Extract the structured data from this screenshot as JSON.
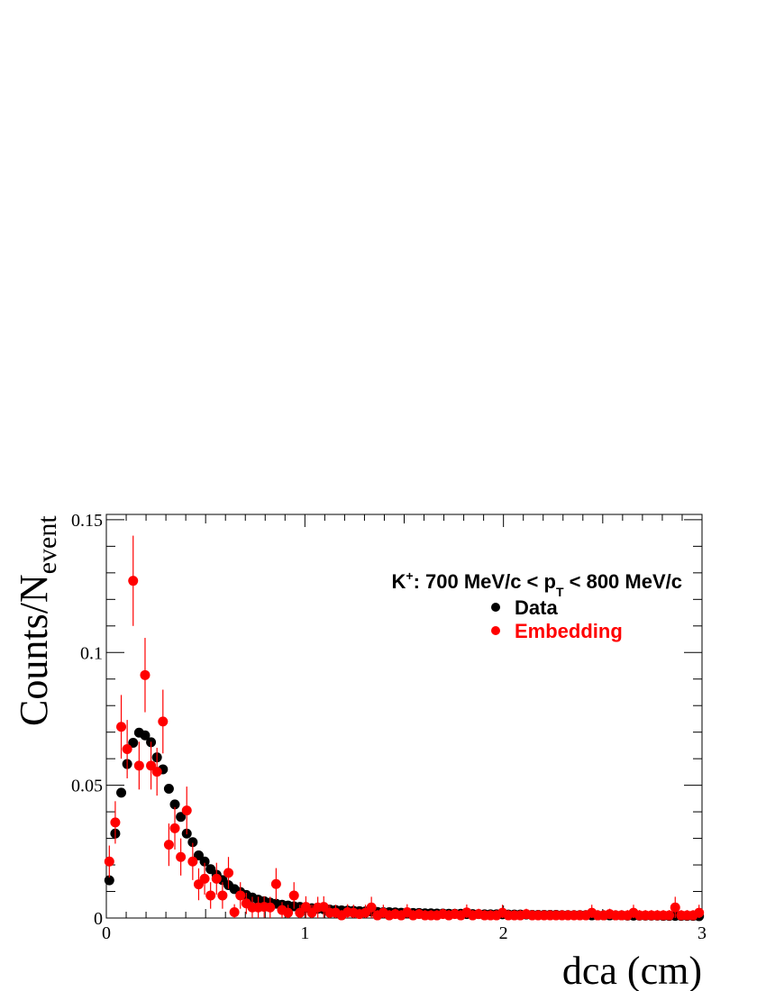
{
  "chart_data": {
    "type": "scatter",
    "title": "",
    "xlabel": "dca (cm)",
    "ylabel_main": "Counts/N",
    "ylabel_sub": "event",
    "xlim": [
      0,
      3
    ],
    "ylim": [
      0,
      0.152
    ],
    "xticks": [
      0,
      1,
      2,
      3
    ],
    "xtick_labels": [
      "0",
      "1",
      "2",
      "3"
    ],
    "yticks": [
      0,
      0.05,
      0.1,
      0.15
    ],
    "ytick_labels": [
      "0",
      "0.05",
      "0.1",
      "0.15"
    ],
    "grid": false,
    "legend_placement": "top-right",
    "annotation": {
      "particle": "K",
      "charge": "+",
      "text_a": ": 700 MeV/c < p",
      "subscript": "T",
      "text_b": " < 800 MeV/c"
    },
    "series": [
      {
        "name": "Data",
        "color": "#000000",
        "x": [
          0.015,
          0.045,
          0.075,
          0.105,
          0.135,
          0.165,
          0.195,
          0.225,
          0.255,
          0.285,
          0.315,
          0.345,
          0.375,
          0.405,
          0.435,
          0.465,
          0.495,
          0.525,
          0.555,
          0.585,
          0.615,
          0.645,
          0.675,
          0.705,
          0.735,
          0.765,
          0.795,
          0.825,
          0.855,
          0.885,
          0.915,
          0.945,
          0.975,
          1.005,
          1.035,
          1.065,
          1.095,
          1.125,
          1.155,
          1.185,
          1.215,
          1.245,
          1.275,
          1.305,
          1.335,
          1.365,
          1.395,
          1.425,
          1.455,
          1.485,
          1.515,
          1.545,
          1.575,
          1.605,
          1.635,
          1.665,
          1.695,
          1.725,
          1.755,
          1.785,
          1.815,
          1.845,
          1.875,
          1.905,
          1.935,
          1.965,
          1.995,
          2.025,
          2.055,
          2.085,
          2.115,
          2.145,
          2.175,
          2.205,
          2.235,
          2.265,
          2.295,
          2.325,
          2.355,
          2.385,
          2.415,
          2.445,
          2.475,
          2.505,
          2.535,
          2.565,
          2.595,
          2.625,
          2.655,
          2.685,
          2.715,
          2.745,
          2.775,
          2.805,
          2.835,
          2.865,
          2.895,
          2.925,
          2.955,
          2.985
        ],
        "y": [
          0.0142,
          0.0318,
          0.0472,
          0.058,
          0.066,
          0.0698,
          0.0688,
          0.0662,
          0.0605,
          0.056,
          0.0487,
          0.0428,
          0.0381,
          0.0318,
          0.0286,
          0.0236,
          0.0213,
          0.0184,
          0.0163,
          0.0143,
          0.0124,
          0.0109,
          0.0098,
          0.0087,
          0.0077,
          0.0069,
          0.0063,
          0.0058,
          0.0054,
          0.005,
          0.0047,
          0.0044,
          0.0042,
          0.0039,
          0.0037,
          0.0035,
          0.0033,
          0.0032,
          0.003,
          0.0029,
          0.0028,
          0.0027,
          0.0026,
          0.0025,
          0.0024,
          0.0023,
          0.0022,
          0.0022,
          0.0021,
          0.002,
          0.002,
          0.0019,
          0.0019,
          0.0018,
          0.0018,
          0.0017,
          0.0017,
          0.0016,
          0.0016,
          0.0016,
          0.0015,
          0.0015,
          0.0015,
          0.0014,
          0.0014,
          0.0014,
          0.0014,
          0.0013,
          0.0013,
          0.0013,
          0.0013,
          0.0012,
          0.0012,
          0.0012,
          0.0012,
          0.0012,
          0.0011,
          0.0011,
          0.0011,
          0.0011,
          0.0011,
          0.001,
          0.001,
          0.001,
          0.001,
          0.001,
          0.001,
          0.0009,
          0.0009,
          0.0009,
          0.0009,
          0.0009,
          0.0009,
          0.0008,
          0.0008,
          0.0008,
          0.0008,
          0.0008,
          0.0008,
          0.0007
        ],
        "err": []
      },
      {
        "name": "Embedding",
        "color": "#ff0000",
        "x": [
          0.015,
          0.045,
          0.075,
          0.105,
          0.135,
          0.165,
          0.195,
          0.225,
          0.255,
          0.285,
          0.315,
          0.345,
          0.375,
          0.405,
          0.435,
          0.465,
          0.495,
          0.525,
          0.555,
          0.585,
          0.615,
          0.645,
          0.675,
          0.705,
          0.735,
          0.765,
          0.795,
          0.825,
          0.855,
          0.885,
          0.915,
          0.945,
          0.975,
          1.005,
          1.035,
          1.065,
          1.095,
          1.125,
          1.155,
          1.185,
          1.215,
          1.245,
          1.275,
          1.305,
          1.335,
          1.365,
          1.395,
          1.425,
          1.455,
          1.485,
          1.515,
          1.545,
          1.575,
          1.605,
          1.635,
          1.665,
          1.695,
          1.725,
          1.755,
          1.785,
          1.815,
          1.845,
          1.875,
          1.905,
          1.935,
          1.965,
          1.995,
          2.025,
          2.055,
          2.085,
          2.115,
          2.145,
          2.175,
          2.205,
          2.235,
          2.265,
          2.295,
          2.325,
          2.355,
          2.385,
          2.415,
          2.445,
          2.475,
          2.505,
          2.535,
          2.565,
          2.595,
          2.625,
          2.655,
          2.685,
          2.715,
          2.745,
          2.775,
          2.805,
          2.835,
          2.865,
          2.895,
          2.925,
          2.955,
          2.985
        ],
        "y": [
          0.0213,
          0.036,
          0.072,
          0.0636,
          0.127,
          0.0574,
          0.0915,
          0.0574,
          0.0551,
          0.074,
          0.0276,
          0.0338,
          0.023,
          0.0405,
          0.0213,
          0.0127,
          0.0148,
          0.0085,
          0.0148,
          0.0085,
          0.017,
          0.0022,
          0.0085,
          0.0055,
          0.004,
          0.004,
          0.0042,
          0.004,
          0.0128,
          0.003,
          0.002,
          0.0085,
          0.002,
          0.0042,
          0.002,
          0.004,
          0.0042,
          0.002,
          0.002,
          0.001,
          0.0022,
          0.002,
          0.0015,
          0.002,
          0.004,
          0.001,
          0.002,
          0.001,
          0.0015,
          0.001,
          0.0022,
          0.001,
          0.0015,
          0.001,
          0.001,
          0.001,
          0.0015,
          0.001,
          0.0015,
          0.001,
          0.0021,
          0.001,
          0.0015,
          0.001,
          0.001,
          0.001,
          0.002,
          0.001,
          0.001,
          0.001,
          0.0015,
          0.001,
          0.001,
          0.001,
          0.001,
          0.001,
          0.001,
          0.001,
          0.001,
          0.001,
          0.001,
          0.002,
          0.001,
          0.001,
          0.0015,
          0.001,
          0.001,
          0.001,
          0.002,
          0.001,
          0.001,
          0.001,
          0.001,
          0.001,
          0.001,
          0.004,
          0.001,
          0.001,
          0.001,
          0.002
        ],
        "err": [
          0.006,
          0.008,
          0.012,
          0.011,
          0.017,
          0.009,
          0.014,
          0.009,
          0.009,
          0.012,
          0.008,
          0.008,
          0.007,
          0.009,
          0.007,
          0.006,
          0.006,
          0.005,
          0.006,
          0.005,
          0.006,
          0.003,
          0.005,
          0.004,
          0.004,
          0.004,
          0.004,
          0.004,
          0.006,
          0.003,
          0.003,
          0.005,
          0.003,
          0.004,
          0.003,
          0.004,
          0.004,
          0.003,
          0.003,
          0.002,
          0.003,
          0.003,
          0.002,
          0.003,
          0.004,
          0.002,
          0.003,
          0.002,
          0.002,
          0.002,
          0.003,
          0.002,
          0.002,
          0.002,
          0.002,
          0.002,
          0.002,
          0.002,
          0.002,
          0.002,
          0.003,
          0.002,
          0.002,
          0.002,
          0.002,
          0.002,
          0.003,
          0.002,
          0.002,
          0.002,
          0.002,
          0.002,
          0.002,
          0.002,
          0.002,
          0.002,
          0.002,
          0.002,
          0.002,
          0.002,
          0.002,
          0.003,
          0.002,
          0.002,
          0.002,
          0.002,
          0.002,
          0.002,
          0.003,
          0.002,
          0.002,
          0.002,
          0.002,
          0.002,
          0.002,
          0.004,
          0.002,
          0.002,
          0.002,
          0.003
        ]
      }
    ]
  }
}
